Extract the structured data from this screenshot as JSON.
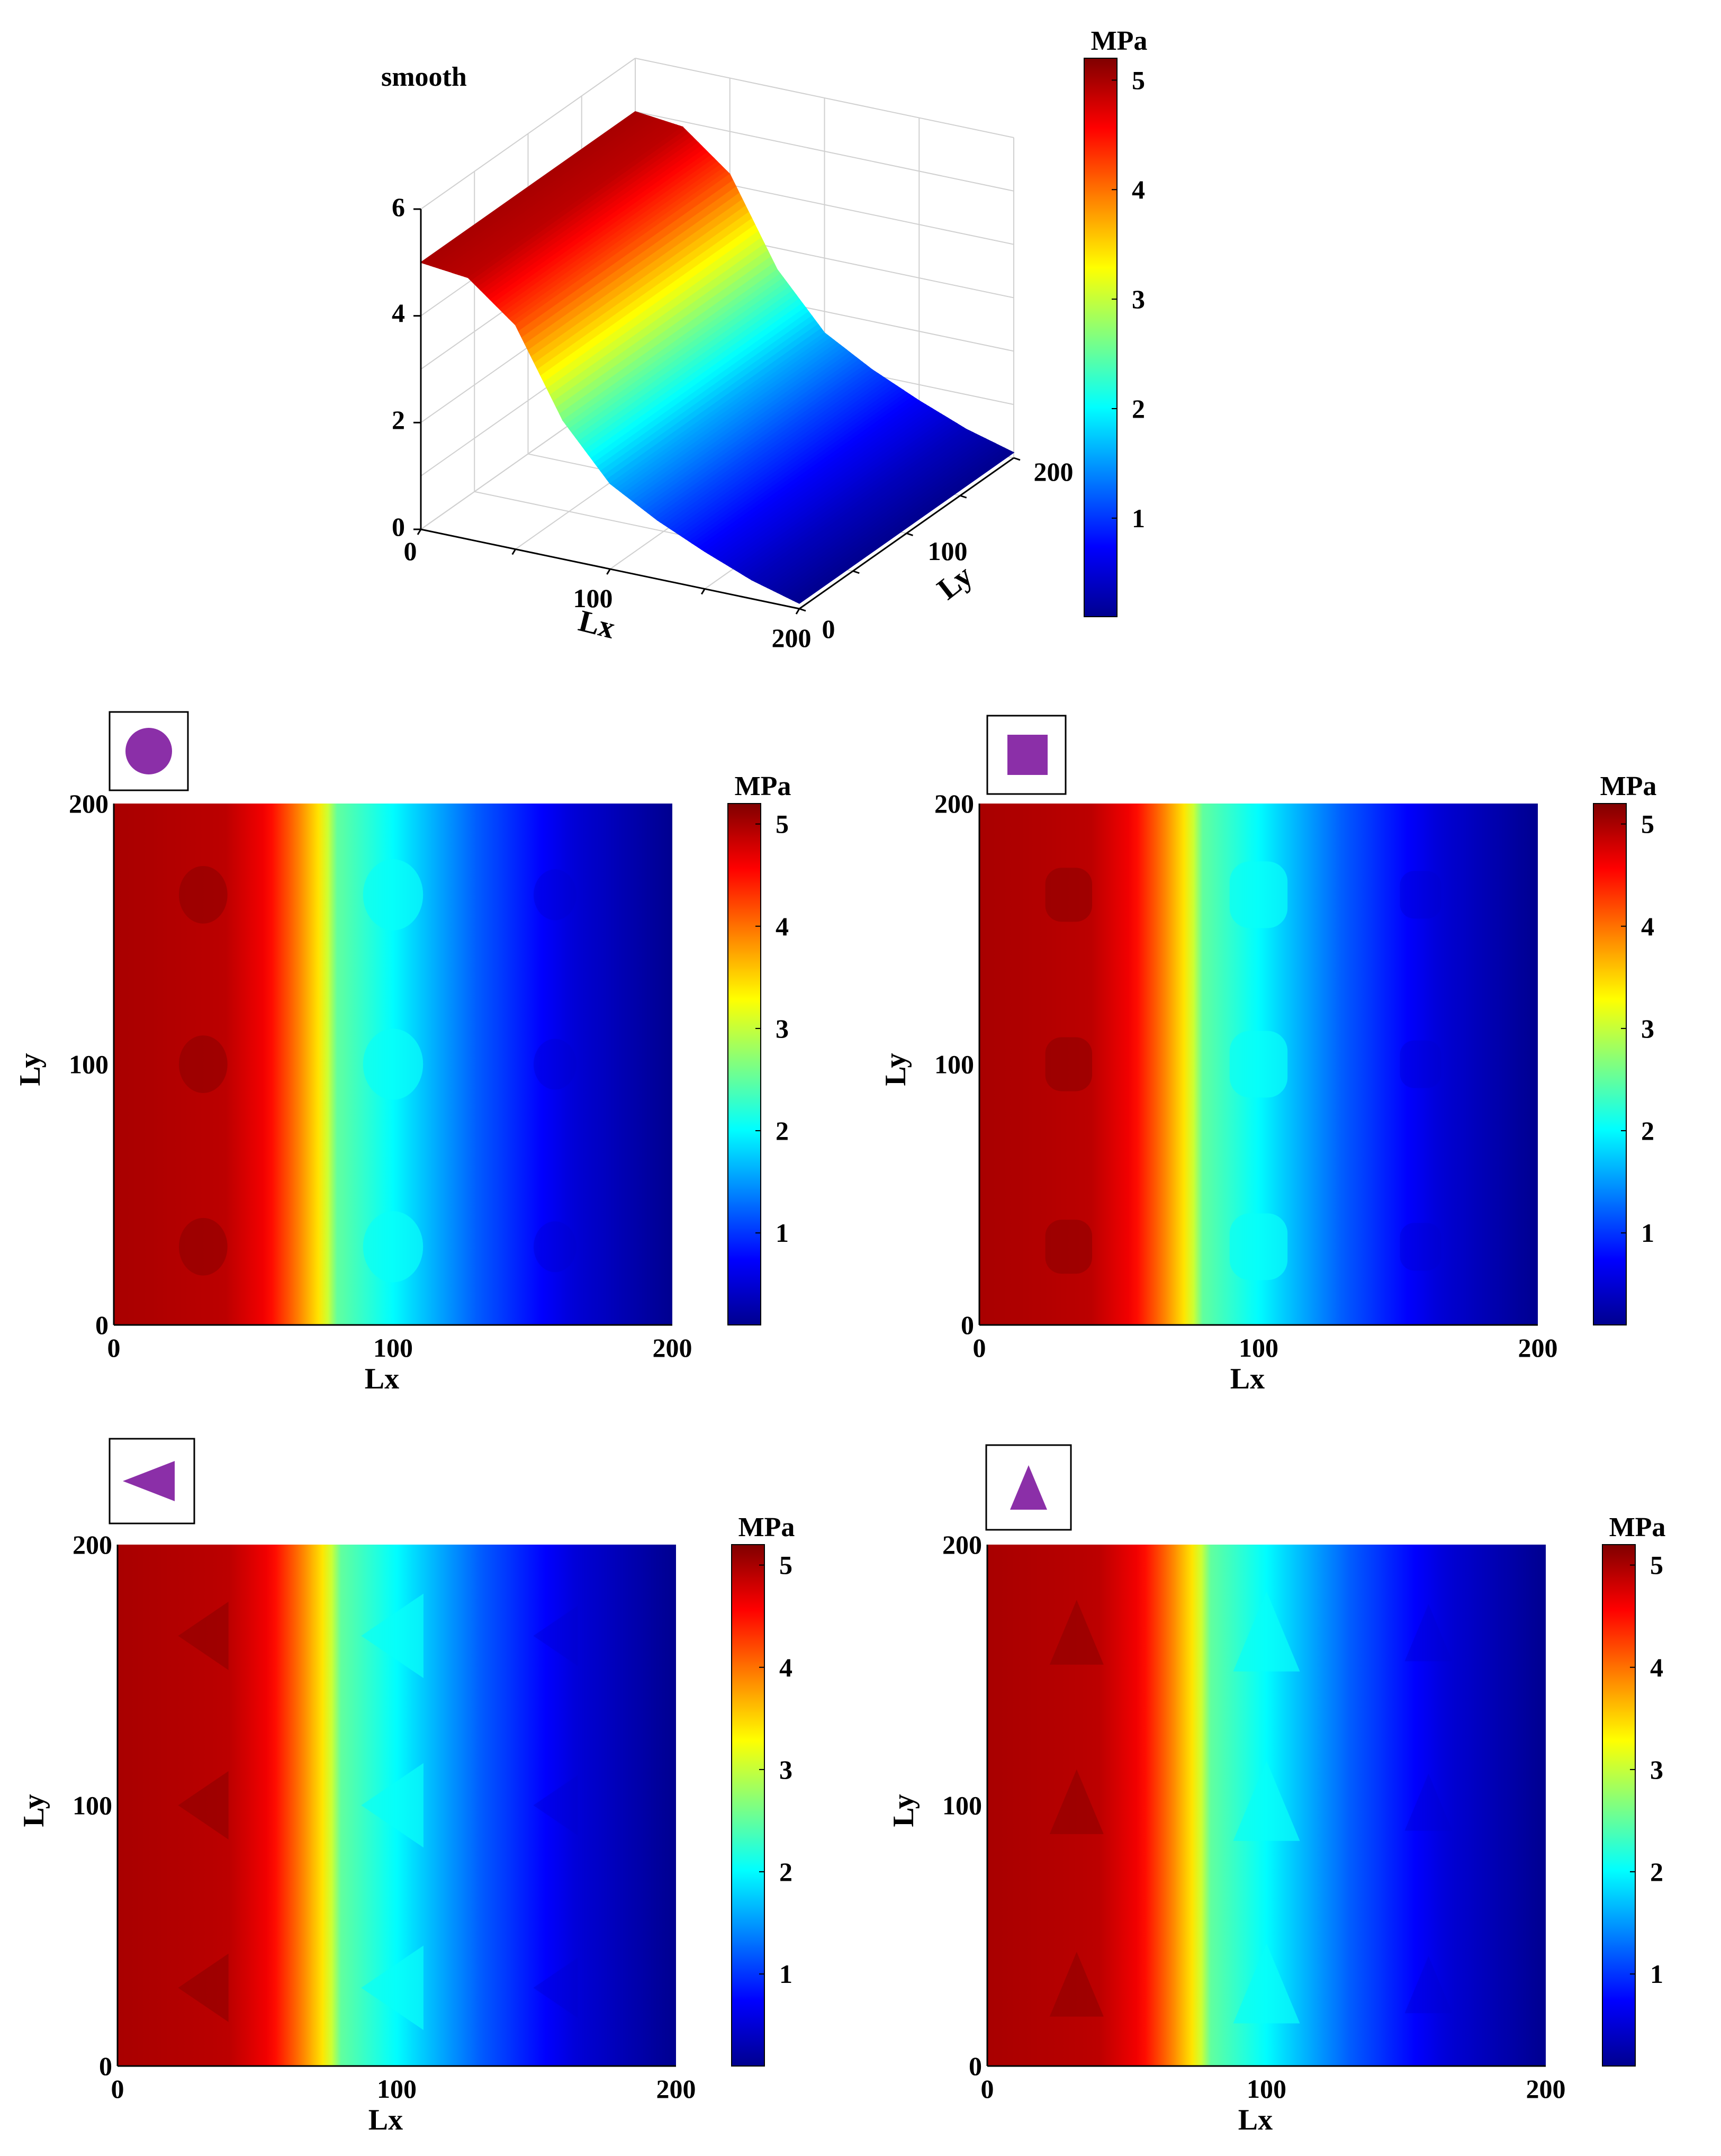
{
  "colormap": [
    "#00008f",
    "#0000ff",
    "#0080ff",
    "#00ffff",
    "#80ff80",
    "#ffff00",
    "#ff8000",
    "#ff0000",
    "#800000"
  ],
  "marker_color": "#8b2fa8",
  "chart_data": [
    {
      "id": "smooth",
      "type": "surface",
      "title": "smooth",
      "xlabel": "Lx",
      "ylabel": "Ly",
      "xlim": [
        0,
        200
      ],
      "ylim": [
        0,
        200
      ],
      "zlim": [
        0,
        6
      ],
      "x_ticks": [
        "0",
        "100",
        "200"
      ],
      "y_ticks": [
        "0",
        "100",
        "200"
      ],
      "z_ticks": [
        "0",
        "2",
        "4",
        "6"
      ],
      "profile_x": [
        0,
        25,
        50,
        75,
        100,
        125,
        150,
        175,
        200
      ],
      "profile_z": [
        5.0,
        4.9,
        4.2,
        2.6,
        1.6,
        1.1,
        0.7,
        0.35,
        0.1
      ],
      "colorbar": {
        "unit": "MPa",
        "range": [
          0.1,
          5.2
        ],
        "ticks": [
          "1",
          "2",
          "3",
          "4",
          "5"
        ]
      }
    },
    {
      "id": "circle",
      "type": "heatmap",
      "marker": "circle-icon",
      "xlabel": "Lx",
      "ylabel": "Ly",
      "xlim": [
        0,
        200
      ],
      "ylim": [
        0,
        200
      ],
      "x_ticks": [
        "0",
        "100",
        "200"
      ],
      "y_ticks": [
        "0",
        "100",
        "200"
      ],
      "profile_x": [
        0,
        40,
        55,
        65,
        75,
        80,
        100,
        130,
        165,
        200
      ],
      "profile_v": [
        5.0,
        4.9,
        4.6,
        4.0,
        3.3,
        2.5,
        2.0,
        1.2,
        0.5,
        0.1
      ],
      "features_y": [
        30,
        100,
        165
      ],
      "colorbar": {
        "unit": "MPa",
        "range": [
          0.1,
          5.2
        ],
        "ticks": [
          "1",
          "2",
          "3",
          "4",
          "5"
        ]
      }
    },
    {
      "id": "square",
      "type": "heatmap",
      "marker": "square-icon",
      "xlabel": "Lx",
      "ylabel": "Ly",
      "xlim": [
        0,
        200
      ],
      "ylim": [
        0,
        200
      ],
      "x_ticks": [
        "0",
        "100",
        "200"
      ],
      "y_ticks": [
        "0",
        "100",
        "200"
      ],
      "profile_x": [
        0,
        40,
        55,
        65,
        75,
        80,
        100,
        130,
        165,
        200
      ],
      "profile_v": [
        5.0,
        4.9,
        4.6,
        4.0,
        3.3,
        2.5,
        2.0,
        1.2,
        0.5,
        0.1
      ],
      "features_y": [
        30,
        100,
        165
      ],
      "colorbar": {
        "unit": "MPa",
        "range": [
          0.1,
          5.2
        ],
        "ticks": [
          "1",
          "2",
          "3",
          "4",
          "5"
        ]
      }
    },
    {
      "id": "left-triangle",
      "type": "heatmap",
      "marker": "left-triangle-icon",
      "xlabel": "Lx",
      "ylabel": "Ly",
      "xlim": [
        0,
        200
      ],
      "ylim": [
        0,
        200
      ],
      "x_ticks": [
        "0",
        "100",
        "200"
      ],
      "y_ticks": [
        "0",
        "100",
        "200"
      ],
      "profile_x": [
        0,
        40,
        55,
        65,
        75,
        80,
        100,
        130,
        165,
        200
      ],
      "profile_v": [
        5.0,
        4.9,
        4.6,
        4.0,
        3.3,
        2.5,
        2.0,
        1.2,
        0.5,
        0.1
      ],
      "features_y": [
        30,
        100,
        165
      ],
      "colorbar": {
        "unit": "MPa",
        "range": [
          0.1,
          5.2
        ],
        "ticks": [
          "1",
          "2",
          "3",
          "4",
          "5"
        ]
      }
    },
    {
      "id": "up-triangle",
      "type": "heatmap",
      "marker": "up-triangle-icon",
      "xlabel": "Lx",
      "ylabel": "Ly",
      "xlim": [
        0,
        200
      ],
      "ylim": [
        0,
        200
      ],
      "x_ticks": [
        "0",
        "100",
        "200"
      ],
      "y_ticks": [
        "0",
        "100",
        "200"
      ],
      "profile_x": [
        0,
        40,
        55,
        65,
        75,
        80,
        100,
        130,
        165,
        200
      ],
      "profile_v": [
        5.0,
        4.9,
        4.6,
        4.0,
        3.3,
        2.5,
        2.0,
        1.2,
        0.5,
        0.1
      ],
      "features_y": [
        30,
        100,
        165
      ],
      "colorbar": {
        "unit": "MPa",
        "range": [
          0.1,
          5.2
        ],
        "ticks": [
          "1",
          "2",
          "3",
          "4",
          "5"
        ]
      }
    }
  ]
}
